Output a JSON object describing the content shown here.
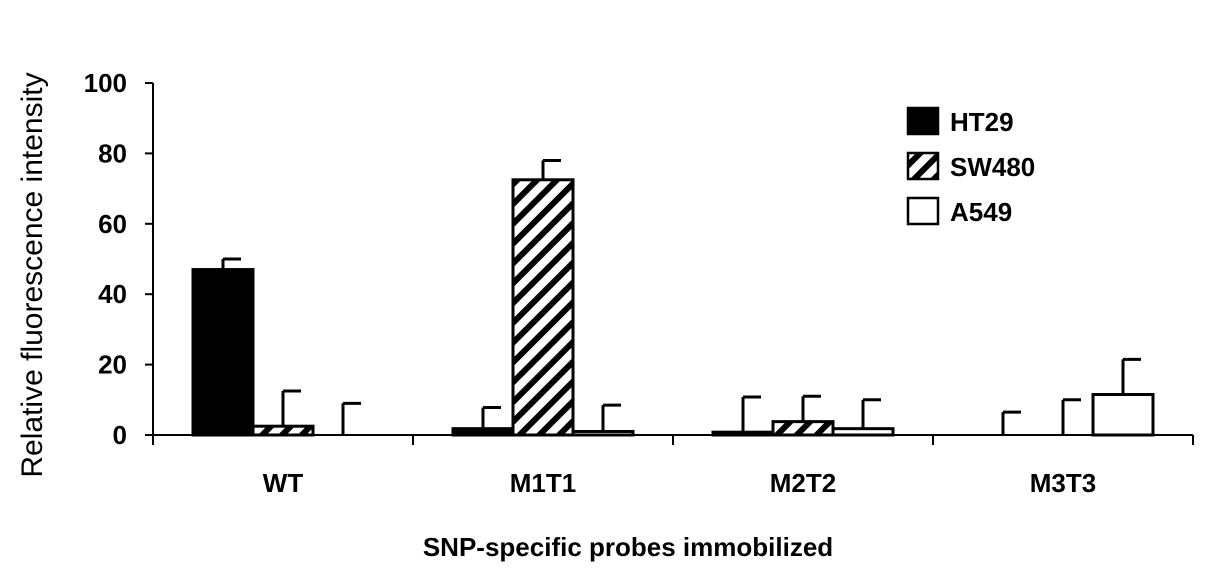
{
  "chart_data": {
    "type": "bar",
    "title": "",
    "xlabel": "SNP-specific probes immobilized",
    "ylabel": "Relative fluorescence intensity",
    "ylim": [
      0,
      100
    ],
    "yticks": [
      "0",
      "20",
      "40",
      "60",
      "80",
      "100"
    ],
    "categories": [
      "WT",
      "M1T1",
      "M2T2",
      "M3T3"
    ],
    "legend_position": "top-right",
    "series": [
      {
        "name": "HT29",
        "fill": "solid",
        "color": "#000000",
        "values": [
          47,
          1.8,
          0.8,
          0
        ],
        "errors": [
          3,
          6,
          10,
          6.5
        ]
      },
      {
        "name": "SW480",
        "fill": "hatched",
        "color": "#000000",
        "values": [
          2.5,
          72.5,
          3.8,
          0
        ],
        "errors": [
          10,
          5.5,
          7.2,
          10
        ]
      },
      {
        "name": "A549",
        "fill": "open",
        "color": "#ffffff",
        "values": [
          0,
          1,
          1.8,
          11.5
        ],
        "errors": [
          9,
          7.5,
          8.2,
          10
        ]
      }
    ]
  }
}
